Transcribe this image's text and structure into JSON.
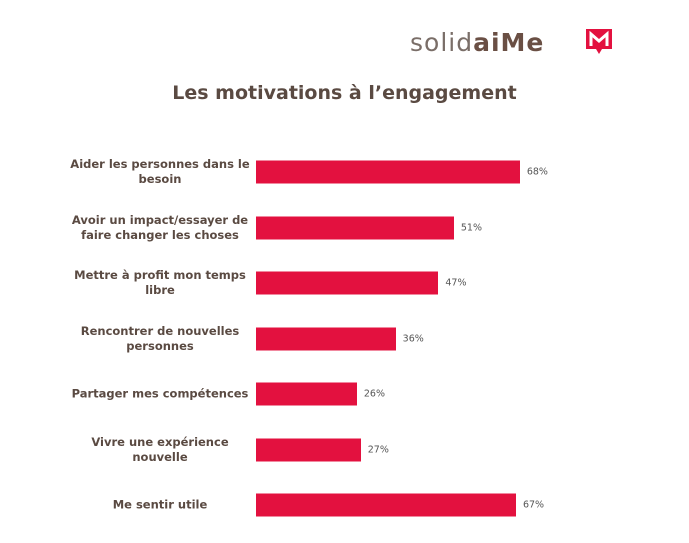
{
  "logo": {
    "part1": "solid",
    "part2": "aiMe"
  },
  "chart_data": {
    "type": "bar",
    "orientation": "horizontal",
    "title": "Les motivations à l’engagement",
    "categories": [
      "Aider les personnes dans le besoin",
      "Avoir un impact/essayer de faire changer les choses",
      "Mettre à profit mon temps libre",
      "Rencontrer de nouvelles personnes",
      "Partager mes compétences",
      "Vivre une expérience nouvelle",
      "Me sentir utile"
    ],
    "values": [
      68,
      51,
      47,
      36,
      26,
      27,
      67
    ],
    "value_labels": [
      "68%",
      "51%",
      "47%",
      "36%",
      "26%",
      "27%",
      "67%"
    ],
    "color": "#e3113f"
  }
}
